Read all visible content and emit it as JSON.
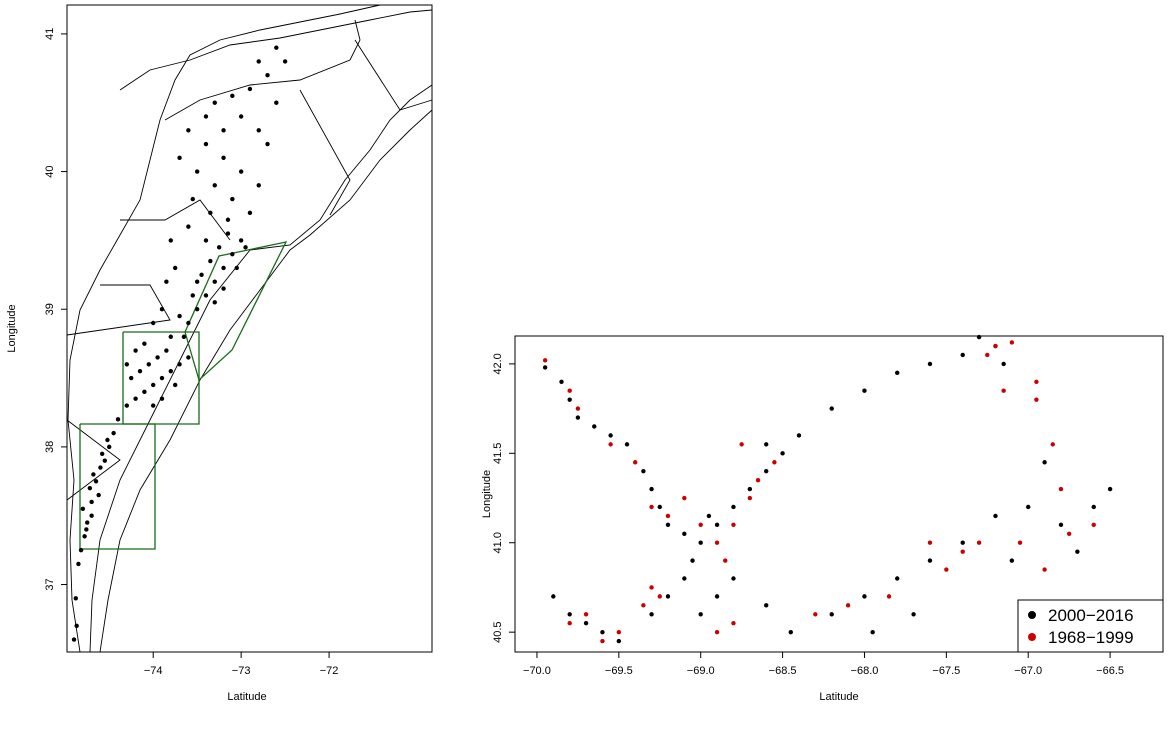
{
  "chart_data": [
    {
      "type": "scatter",
      "xlabel": "Latitude",
      "ylabel": "Longitude",
      "color": "#000000",
      "xlim": [
        -74.98,
        -70.83
      ],
      "ylim": [
        36.51,
        41.21
      ],
      "xticks": [
        {
          "value": -74,
          "label": "−74"
        },
        {
          "value": -73,
          "label": "−73"
        },
        {
          "value": -72,
          "label": "−72"
        }
      ],
      "yticks": [
        37,
        38,
        39,
        40,
        41
      ],
      "x": [
        -74.82,
        -74.78,
        -74.75,
        -74.8,
        -74.7,
        -74.72,
        -74.65,
        -74.6,
        -74.68,
        -74.55,
        -74.5,
        -74.58,
        -74.45,
        -74.4,
        -74.52,
        -74.62,
        -74.7,
        -74.76,
        -74.85,
        -74.88,
        -74.87,
        -74.9,
        -74.3,
        -74.2,
        -74.1,
        -74.0,
        -73.9,
        -73.8,
        -74.25,
        -74.15,
        -74.05,
        -73.95,
        -73.85,
        -74.2,
        -74.1,
        -73.7,
        -73.75,
        -74.0,
        -73.9,
        -73.6,
        -73.65,
        -74.3,
        -73.8,
        -73.6,
        -73.5,
        -73.4,
        -73.3,
        -73.2,
        -73.1,
        -73.0,
        -73.55,
        -73.45,
        -73.35,
        -73.25,
        -73.15,
        -73.7,
        -73.5,
        -73.3,
        -73.2,
        -73.05,
        -72.95,
        -73.4,
        -73.6,
        -73.4,
        -73.2,
        -73.0,
        -72.8,
        -73.5,
        -73.3,
        -73.1,
        -72.9,
        -73.7,
        -73.4,
        -73.2,
        -73.0,
        -72.8,
        -72.6,
        -72.9,
        -72.7,
        -72.5,
        -73.1,
        -72.6,
        -72.8,
        -73.3,
        -72.7,
        -73.55,
        -73.35,
        -73.15,
        -73.6,
        -73.8,
        -73.75,
        -73.85,
        -73.9,
        -74.0
      ],
      "y": [
        37.25,
        37.35,
        37.45,
        37.55,
        37.6,
        37.7,
        37.75,
        37.85,
        37.8,
        37.9,
        38.0,
        37.95,
        38.1,
        38.2,
        38.05,
        37.65,
        37.5,
        37.4,
        37.15,
        36.9,
        36.7,
        36.6,
        38.3,
        38.35,
        38.4,
        38.45,
        38.5,
        38.55,
        38.5,
        38.55,
        38.6,
        38.65,
        38.7,
        38.7,
        38.75,
        38.6,
        38.45,
        38.3,
        38.35,
        38.65,
        38.8,
        38.6,
        38.8,
        38.9,
        39.0,
        39.1,
        39.2,
        39.3,
        39.4,
        39.5,
        39.1,
        39.25,
        39.35,
        39.45,
        39.55,
        38.95,
        39.2,
        39.05,
        39.15,
        39.3,
        39.45,
        39.5,
        40.3,
        40.2,
        40.1,
        40.0,
        39.9,
        40.0,
        39.9,
        39.8,
        39.7,
        40.1,
        40.4,
        40.3,
        40.4,
        40.3,
        40.5,
        40.6,
        40.7,
        40.8,
        40.55,
        40.9,
        40.8,
        40.5,
        40.2,
        39.8,
        39.7,
        39.65,
        39.6,
        39.5,
        39.3,
        39.2,
        39.0,
        38.9
      ]
    },
    {
      "type": "scatter",
      "xlabel": "Latitude",
      "ylabel": "Longitude",
      "legend": "bottom-right",
      "xlim": [
        -70.134,
        -66.177
      ],
      "ylim": [
        40.389,
        42.156
      ],
      "xticks": [
        {
          "value": -70,
          "label": "−70.0"
        },
        {
          "value": -69.5,
          "label": "−69.5"
        },
        {
          "value": -69,
          "label": "−69.0"
        },
        {
          "value": -68.5,
          "label": "−68.5"
        },
        {
          "value": -68,
          "label": "−68.0"
        },
        {
          "value": -67.5,
          "label": "−67.5"
        },
        {
          "value": -67,
          "label": "−67.0"
        },
        {
          "value": -66.5,
          "label": "−66.5"
        }
      ],
      "yticks": [
        {
          "value": 40.5,
          "label": "40.5"
        },
        {
          "value": 41,
          "label": "41.0"
        },
        41.5,
        {
          "value": 42,
          "label": "42.0"
        }
      ],
      "series": [
        {
          "name": "2000−2016",
          "color": "#000000",
          "x": [
            -69.95,
            -69.85,
            -69.8,
            -69.75,
            -69.65,
            -69.55,
            -69.45,
            -69.35,
            -69.3,
            -69.25,
            -69.2,
            -69.1,
            -69.0,
            -68.9,
            -68.8,
            -68.7,
            -68.6,
            -68.5,
            -68.4,
            -68.2,
            -68.0,
            -67.8,
            -67.6,
            -67.4,
            -67.2,
            -67.3,
            -67.15,
            -69.9,
            -69.8,
            -69.7,
            -69.6,
            -69.5,
            -69.3,
            -69.2,
            -69.1,
            -69.0,
            -68.9,
            -68.8,
            -68.6,
            -68.45,
            -68.2,
            -68.0,
            -67.8,
            -67.6,
            -67.4,
            -67.2,
            -67.0,
            -66.8,
            -66.6,
            -66.5,
            -66.9,
            -67.1,
            -66.7,
            -68.6,
            -69.05,
            -68.95,
            -67.95,
            -67.7
          ],
          "y": [
            41.98,
            41.9,
            41.8,
            41.7,
            41.65,
            41.6,
            41.55,
            41.4,
            41.3,
            41.2,
            41.1,
            41.05,
            41.0,
            41.1,
            41.2,
            41.3,
            41.4,
            41.5,
            41.6,
            41.75,
            41.85,
            41.95,
            42.0,
            42.05,
            42.1,
            42.15,
            42.0,
            40.7,
            40.6,
            40.55,
            40.5,
            40.45,
            40.6,
            40.7,
            40.8,
            40.6,
            40.7,
            40.8,
            40.65,
            40.5,
            40.6,
            40.7,
            40.8,
            40.9,
            41.0,
            41.15,
            41.2,
            41.1,
            41.2,
            41.3,
            41.45,
            40.9,
            40.95,
            41.55,
            40.9,
            41.15,
            40.5,
            40.6
          ]
        },
        {
          "name": "1968−1999",
          "color": "#cc0000",
          "x": [
            -69.95,
            -69.8,
            -69.75,
            -69.55,
            -69.4,
            -69.3,
            -69.2,
            -69.0,
            -68.9,
            -68.85,
            -68.8,
            -68.7,
            -68.65,
            -68.55,
            -69.3,
            -69.25,
            -69.35,
            -69.5,
            -69.6,
            -69.7,
            -69.8,
            -68.9,
            -68.8,
            -68.3,
            -68.1,
            -67.85,
            -67.5,
            -67.3,
            -67.05,
            -66.9,
            -66.75,
            -66.6,
            -66.8,
            -66.85,
            -67.2,
            -67.1,
            -67.25,
            -67.15,
            -66.95,
            -66.95,
            -68.75,
            -67.6,
            -67.4,
            -69.1
          ],
          "y": [
            42.02,
            41.85,
            41.75,
            41.55,
            41.45,
            41.2,
            41.15,
            41.1,
            41.0,
            40.9,
            41.1,
            41.25,
            41.35,
            41.45,
            40.75,
            40.7,
            40.65,
            40.5,
            40.45,
            40.6,
            40.55,
            40.5,
            40.55,
            40.6,
            40.65,
            40.7,
            40.85,
            41.0,
            41.0,
            40.85,
            41.05,
            41.1,
            41.3,
            41.55,
            42.1,
            42.12,
            42.05,
            41.85,
            41.9,
            41.8,
            41.55,
            41.0,
            40.95,
            41.25
          ]
        }
      ]
    }
  ]
}
